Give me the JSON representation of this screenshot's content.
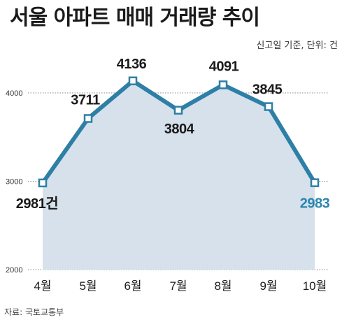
{
  "header": {
    "title": "서울 아파트 매매 거래량 추이",
    "subtitle": "신고일 기준, 단위: 건"
  },
  "footer": {
    "source": "자료: 국토교통부"
  },
  "chart_data": {
    "type": "line",
    "title": "서울 아파트 매매 거래량 추이",
    "subtitle": "신고일 기준, 단위: 건",
    "categories": [
      "4월",
      "5월",
      "6월",
      "7월",
      "8월",
      "9월",
      "10월"
    ],
    "values": [
      2981,
      3711,
      4136,
      3804,
      4091,
      3845,
      2983
    ],
    "data_labels": [
      "2981건",
      "3711",
      "4136",
      "3804",
      "4091",
      "3845",
      "2983"
    ],
    "highlight_index": 6,
    "ylim": [
      2000,
      4000
    ],
    "yticks": [
      2000,
      3000,
      4000
    ],
    "grid": true,
    "colors": {
      "line": "#2e7fa6",
      "area": "#d6e1eb",
      "highlight_label": "#2a86b0",
      "grid": "#888888",
      "marker_fill": "#ffffff"
    }
  }
}
